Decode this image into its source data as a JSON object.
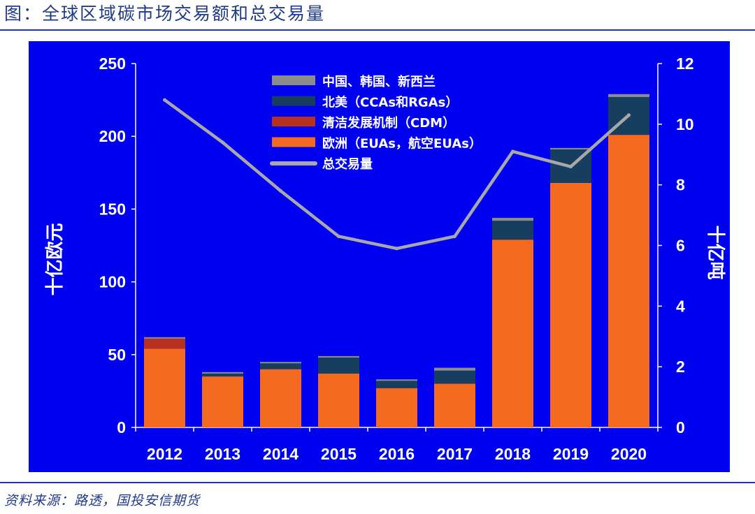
{
  "header": {
    "title": "图：全球区域碳市场交易额和总交易量"
  },
  "footer": {
    "source": "资料来源：路透，国投安信期货"
  },
  "colors": {
    "background": "#0000F0",
    "text": "#FFFFFF",
    "europe": "#F46B20",
    "cdm": "#B83020",
    "north_america": "#173E5E",
    "cn_kr_nz": "#8C8C8C",
    "total_line": "#A8A8A8"
  },
  "chart_data": {
    "type": "bar",
    "stacked": true,
    "title": "",
    "categories": [
      "2012",
      "2013",
      "2014",
      "2015",
      "2016",
      "2017",
      "2018",
      "2019",
      "2020"
    ],
    "series": [
      {
        "name": "欧洲（EUAs，航空EUAs）",
        "color": "#F46B20",
        "values": [
          54,
          35,
          40,
          37,
          27,
          30,
          129,
          168,
          201
        ]
      },
      {
        "name": "清洁发展机制（CDM）",
        "color": "#B83020",
        "values": [
          7,
          0,
          0,
          0,
          0,
          0,
          0,
          0,
          0
        ]
      },
      {
        "name": "北美（CCAs和RGAs）",
        "color": "#173E5E",
        "values": [
          0,
          2,
          4,
          11,
          5,
          9,
          13,
          23,
          26
        ]
      },
      {
        "name": "中国、韩国、新西兰",
        "color": "#8C8C8C",
        "values": [
          1,
          1,
          1,
          1,
          1,
          2,
          2,
          1,
          2
        ]
      }
    ],
    "line": {
      "name": "总交易量",
      "color": "#A8A8A8",
      "axis": "right",
      "values": [
        10.8,
        9.4,
        7.8,
        6.3,
        5.9,
        6.3,
        9.1,
        8.6,
        10.3
      ]
    },
    "ylabel": "十亿欧元",
    "y2label": "十亿吨",
    "ylim": [
      0,
      250
    ],
    "yticks": [
      0,
      50,
      100,
      150,
      200,
      250
    ],
    "y2lim": [
      0,
      12
    ],
    "y2ticks": [
      0,
      2,
      4,
      6,
      8,
      10,
      12
    ],
    "legend": [
      "中国、韩国、新西兰",
      "北美（CCAs和RGAs）",
      "清洁发展机制（CDM）",
      "欧洲（EUAs，航空EUAs）",
      "总交易量"
    ],
    "legend_position": "top-center"
  }
}
